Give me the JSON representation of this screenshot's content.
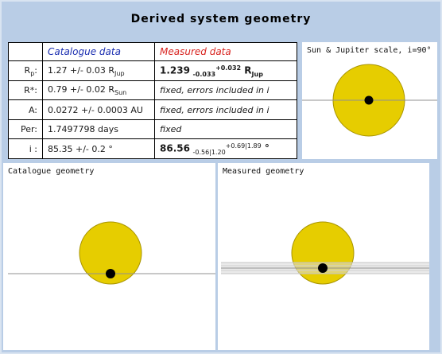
{
  "title": "Derived system geometry",
  "table": {
    "header": {
      "catalogue": "Catalogue data",
      "measured": "Measured data"
    },
    "rows": [
      {
        "label": "R",
        "label_sub": "p",
        "label_suffix": ":",
        "cat": "1.27 +/- 0.03 R",
        "cat_sub": "Jup",
        "meas_value": "1.239",
        "meas_sub": "-0.033",
        "meas_sup": "+0.032",
        "meas_unit": " R",
        "meas_unit_sub": "Jup"
      },
      {
        "label": "R*:",
        "cat": "0.79 +/- 0.02 R",
        "cat_sub": "Sun",
        "meas": "fixed, errors included in i"
      },
      {
        "label": "A:",
        "cat": "0.0272 +/- 0.0003 AU",
        "meas": "fixed, errors included in i"
      },
      {
        "label": "Per:",
        "cat": "1.7497798 days",
        "meas": "fixed"
      },
      {
        "label": "i :",
        "cat": "85.35 +/- 0.2 °",
        "meas_value": "86.56",
        "meas_sub": "-0.56|1.20",
        "meas_sup": "+0.69|1.89",
        "meas_unit": " °"
      }
    ]
  },
  "panels": {
    "scale": {
      "title": "Sun & Jupiter scale, i=90°"
    },
    "catalogue": {
      "title": "Catalogue geometry"
    },
    "measured": {
      "title": "Measured geometry"
    }
  },
  "colors": {
    "star_fill": "#e6cd00",
    "star_edge": "#a89400",
    "planet": "#000000",
    "orbit_line": "#909090",
    "band": "#e4e4e4"
  }
}
